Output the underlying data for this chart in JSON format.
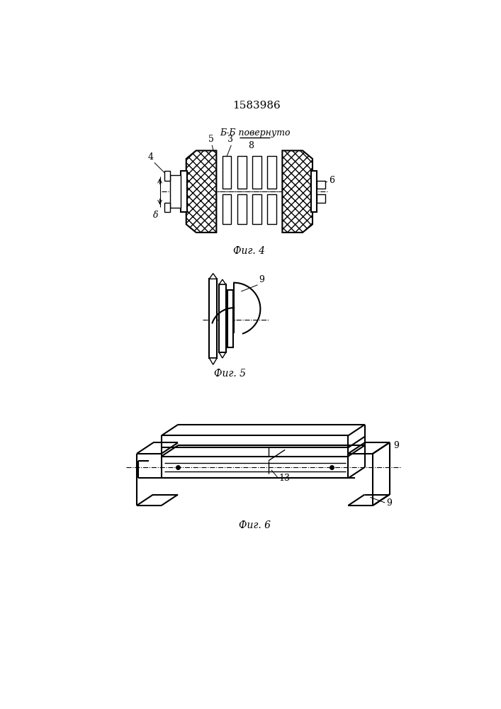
{
  "title": "1583986",
  "bg_color": "#ffffff",
  "line_color": "#000000",
  "fig4_caption": "Фиг. 4",
  "fig5_caption": "Фиг. 5",
  "fig6_caption": "Фиг. 6",
  "section_label": "Б-Б повернуто",
  "label_5": "5",
  "label_3": "3",
  "label_8": "8",
  "label_4": "4",
  "label_6": "6",
  "label_delta": "δ",
  "label_9a": "9",
  "label_9b": "9",
  "label_9c": "9",
  "label_10": "13"
}
